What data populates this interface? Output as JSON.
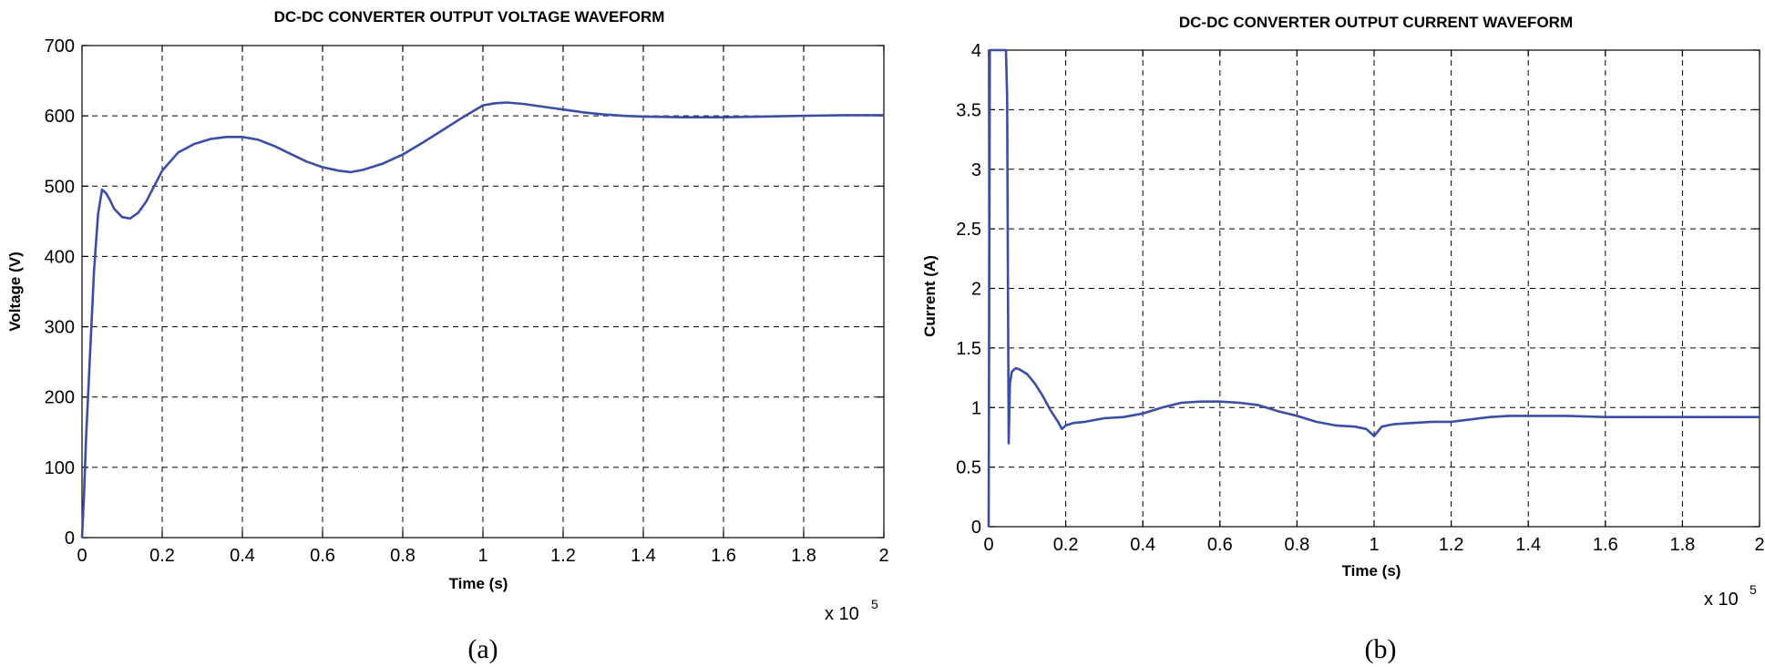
{
  "chart_data": [
    {
      "type": "line",
      "title": "DC-DC CONVERTER OUTPUT VOLTAGE WAVEFORM",
      "xlabel": "Time (s)",
      "ylabel": "Voltage (V)",
      "x_exponent_base": "x 10",
      "x_exponent_power": "5",
      "caption": "(a)",
      "xlim": [
        0,
        2
      ],
      "ylim": [
        0,
        700
      ],
      "xticks": [
        "0",
        "0.2",
        "0.4",
        "0.6",
        "0.8",
        "1",
        "1.2",
        "1.4",
        "1.6",
        "1.8",
        "2"
      ],
      "yticks": [
        "0",
        "100",
        "200",
        "300",
        "400",
        "500",
        "600",
        "700"
      ],
      "grid": true,
      "color": "#3a4ea6",
      "series": [
        {
          "x": [
            0,
            0.005,
            0.01,
            0.02,
            0.03,
            0.04,
            0.05,
            0.06,
            0.07,
            0.08,
            0.1,
            0.12,
            0.14,
            0.16,
            0.18,
            0.2,
            0.24,
            0.28,
            0.32,
            0.36,
            0.4,
            0.44,
            0.48,
            0.52,
            0.56,
            0.6,
            0.64,
            0.67,
            0.7,
            0.75,
            0.8,
            0.85,
            0.9,
            0.95,
            1.0,
            1.03,
            1.06,
            1.1,
            1.15,
            1.2,
            1.25,
            1.3,
            1.35,
            1.4,
            1.5,
            1.6,
            1.7,
            1.8,
            1.9,
            2.0
          ],
          "y": [
            0,
            60,
            140,
            260,
            380,
            460,
            495,
            490,
            480,
            468,
            456,
            454,
            462,
            478,
            500,
            522,
            548,
            560,
            567,
            570,
            570,
            566,
            557,
            546,
            535,
            527,
            522,
            520,
            523,
            532,
            545,
            562,
            580,
            598,
            615,
            618,
            619,
            617,
            613,
            609,
            605,
            602,
            600,
            599,
            598,
            598,
            599,
            600,
            601,
            601
          ]
        }
      ]
    },
    {
      "type": "line",
      "title": "DC-DC CONVERTER OUTPUT CURRENT WAVEFORM",
      "xlabel": "Time (s)",
      "ylabel": "Current (A)",
      "x_exponent_base": "x 10",
      "x_exponent_power": "5",
      "caption": "(b)",
      "xlim": [
        0,
        2
      ],
      "ylim": [
        0,
        4
      ],
      "xticks": [
        "0",
        "0.2",
        "0.4",
        "0.6",
        "0.8",
        "1",
        "1.2",
        "1.4",
        "1.6",
        "1.8",
        "2"
      ],
      "yticks": [
        "0",
        "0.5",
        "1",
        "1.5",
        "2",
        "2.5",
        "3",
        "3.5",
        "4"
      ],
      "grid": true,
      "color": "#3a4ea6",
      "series": [
        {
          "x": [
            0,
            0.003,
            0.006,
            0.045,
            0.048,
            0.05,
            0.052,
            0.055,
            0.06,
            0.07,
            0.08,
            0.1,
            0.12,
            0.14,
            0.16,
            0.18,
            0.19,
            0.2,
            0.22,
            0.25,
            0.3,
            0.35,
            0.4,
            0.45,
            0.5,
            0.55,
            0.6,
            0.65,
            0.7,
            0.75,
            0.8,
            0.85,
            0.9,
            0.95,
            0.98,
            1.0,
            1.02,
            1.05,
            1.1,
            1.15,
            1.2,
            1.25,
            1.3,
            1.35,
            1.4,
            1.5,
            1.6,
            1.7,
            1.8,
            1.9,
            2.0
          ],
          "y": [
            0,
            4.0,
            4.0,
            4.0,
            3.6,
            2.0,
            0.7,
            1.2,
            1.3,
            1.33,
            1.32,
            1.28,
            1.2,
            1.1,
            0.98,
            0.88,
            0.82,
            0.85,
            0.87,
            0.88,
            0.91,
            0.92,
            0.95,
            1.0,
            1.04,
            1.05,
            1.05,
            1.04,
            1.02,
            0.97,
            0.93,
            0.88,
            0.85,
            0.84,
            0.82,
            0.76,
            0.84,
            0.86,
            0.87,
            0.88,
            0.88,
            0.9,
            0.92,
            0.93,
            0.93,
            0.93,
            0.92,
            0.92,
            0.92,
            0.92,
            0.92
          ]
        }
      ]
    }
  ]
}
